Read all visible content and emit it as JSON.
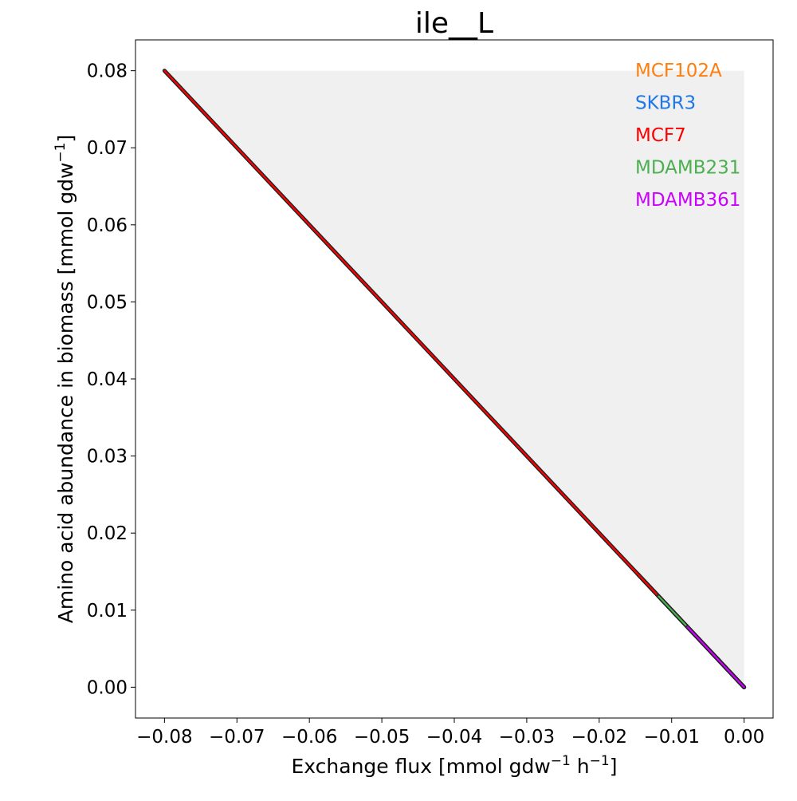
{
  "chart_data": {
    "type": "line",
    "title": "ile__L",
    "xlabel_parts": [
      "Exchange flux [mmol gdw",
      "−1",
      " h",
      "−1",
      "]"
    ],
    "ylabel_parts": [
      "Amino acid abundance in biomass [mmol gdw",
      "−1",
      "]"
    ],
    "xlim": [
      -0.084,
      0.004
    ],
    "ylim": [
      -0.004,
      0.084
    ],
    "xticks": [
      -0.08,
      -0.07,
      -0.06,
      -0.05,
      -0.04,
      -0.03,
      -0.02,
      -0.01,
      0.0
    ],
    "xtick_labels": [
      "−0.08",
      "−0.07",
      "−0.06",
      "−0.05",
      "−0.04",
      "−0.03",
      "−0.02",
      "−0.01",
      "0.00"
    ],
    "yticks": [
      0.0,
      0.01,
      0.02,
      0.03,
      0.04,
      0.05,
      0.06,
      0.07,
      0.08
    ],
    "ytick_labels": [
      "0.00",
      "0.01",
      "0.02",
      "0.03",
      "0.04",
      "0.05",
      "0.06",
      "0.07",
      "0.08"
    ],
    "feasible_region": {
      "points": [
        [
          -0.08,
          0.08
        ],
        [
          0.0,
          0.08
        ],
        [
          0.0,
          0.0
        ]
      ],
      "color": "#f0f0f0"
    },
    "grid": false,
    "legend": {
      "placement": "top-right"
    },
    "series": [
      {
        "name": "MCF102A",
        "color": "#ff7f0e",
        "x": [
          -0.0147,
          0.0
        ],
        "y": [
          0.0147,
          0.0
        ]
      },
      {
        "name": "SKBR3",
        "color": "#1f77e8",
        "x": [
          -0.0142,
          0.0
        ],
        "y": [
          0.0142,
          0.0
        ]
      },
      {
        "name": "MCF7",
        "color": "#ff0000",
        "x": [
          -0.08,
          0.0
        ],
        "y": [
          0.08,
          0.0
        ]
      },
      {
        "name": "MDAMB231",
        "color": "#4caf50",
        "x": [
          -0.0118,
          0.0
        ],
        "y": [
          0.0118,
          0.0
        ]
      },
      {
        "name": "MDAMB361",
        "color": "#cc00ff",
        "x": [
          -0.0078,
          0.0
        ],
        "y": [
          0.0078,
          0.0
        ]
      }
    ]
  }
}
